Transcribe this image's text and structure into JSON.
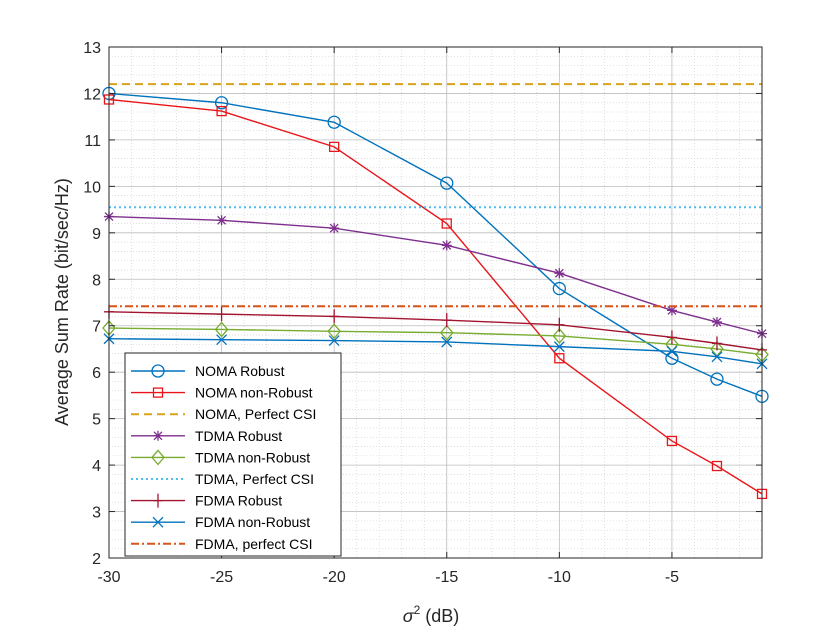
{
  "chart_data": {
    "type": "line",
    "title": "",
    "xlabel_symbol": "σ",
    "xlabel_exp": "2",
    "xlabel_unit": " (dB)",
    "ylabel": "Average Sum Rate (bit/sec/Hz)",
    "xlim": [
      -30,
      -1
    ],
    "ylim": [
      2,
      13
    ],
    "xticks": [
      -30,
      -25,
      -20,
      -15,
      -10,
      -5
    ],
    "yticks": [
      2,
      3,
      4,
      5,
      6,
      7,
      8,
      9,
      10,
      11,
      12,
      13
    ],
    "grid": true,
    "legend_position": "bottom-left",
    "x": [
      -30,
      -25,
      -20,
      -15,
      -10,
      -5,
      -3,
      -1
    ],
    "series": [
      {
        "name": "NOMA Robust",
        "color": "#0072BD",
        "marker": "circle",
        "dash": "solid",
        "values": [
          12.0,
          11.8,
          11.38,
          10.07,
          7.8,
          6.3,
          5.85,
          5.48
        ]
      },
      {
        "name": "NOMA non-Robust",
        "color": "#E8161B",
        "marker": "square",
        "dash": "solid",
        "values": [
          11.87,
          11.62,
          10.85,
          9.2,
          6.3,
          4.52,
          3.98,
          3.38
        ]
      },
      {
        "name": "NOMA, Perfect CSI",
        "color": "#D9A21B",
        "marker": "none",
        "dash": "dashed",
        "values": [
          12.2,
          12.2,
          12.2,
          12.2,
          12.2,
          12.2,
          12.2,
          12.2
        ]
      },
      {
        "name": "TDMA Robust",
        "color": "#7E2F8E",
        "marker": "asterisk",
        "dash": "solid",
        "values": [
          9.35,
          9.27,
          9.1,
          8.73,
          8.13,
          7.33,
          7.08,
          6.83
        ]
      },
      {
        "name": "TDMA non-Robust",
        "color": "#77AC30",
        "marker": "diamond",
        "dash": "solid",
        "values": [
          6.95,
          6.92,
          6.88,
          6.85,
          6.78,
          6.6,
          6.5,
          6.38
        ]
      },
      {
        "name": "TDMA, Perfect CSI",
        "color": "#4DBEEE",
        "marker": "none",
        "dash": "dotted",
        "values": [
          9.55,
          9.55,
          9.55,
          9.55,
          9.55,
          9.55,
          9.55,
          9.55
        ]
      },
      {
        "name": "FDMA Robust",
        "color": "#A2142F",
        "marker": "plus",
        "dash": "solid",
        "values": [
          7.3,
          7.25,
          7.2,
          7.12,
          7.02,
          6.75,
          6.62,
          6.48
        ]
      },
      {
        "name": "FDMA non-Robust",
        "color": "#0072BD",
        "marker": "x",
        "dash": "solid",
        "values": [
          6.72,
          6.7,
          6.68,
          6.65,
          6.55,
          6.45,
          6.33,
          6.18
        ]
      },
      {
        "name": "FDMA, perfect CSI",
        "color": "#D95319",
        "marker": "none",
        "dash": "dashdot",
        "values": [
          7.42,
          7.42,
          7.42,
          7.42,
          7.42,
          7.42,
          7.42,
          7.42
        ]
      }
    ]
  }
}
